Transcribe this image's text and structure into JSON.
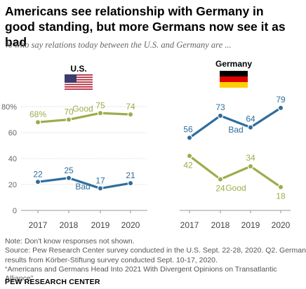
{
  "title": "Americans see relationship with Germany in good standing, but more Germans now see it as bad",
  "subtitle": "% who say relations today between the U.S. and Germany are ...",
  "colors": {
    "good": "#9fab4c",
    "bad": "#2f6d9c",
    "axis": "#999999",
    "grid": "#d9d9d9"
  },
  "icons": {
    "us_flag": "us-flag-icon",
    "germany_flag": "germany-flag-icon"
  },
  "chart_data": [
    {
      "type": "line",
      "panel_title": "U.S.",
      "x": [
        "2017",
        "2018",
        "2019",
        "2020"
      ],
      "ylim": [
        0,
        80
      ],
      "y_ticks": [
        "0",
        "20",
        "40",
        "60",
        "80%"
      ],
      "grid": true,
      "series": [
        {
          "name": "Good",
          "values": [
            68,
            70,
            75,
            74
          ],
          "labels": [
            "68%",
            "70",
            "75",
            "74"
          ]
        },
        {
          "name": "Bad",
          "values": [
            22,
            25,
            17,
            21
          ],
          "labels": [
            "22",
            "25",
            "17",
            "21"
          ]
        }
      ]
    },
    {
      "type": "line",
      "panel_title": "Germany",
      "x": [
        "2017",
        "2018",
        "2019",
        "2020"
      ],
      "ylim": [
        0,
        80
      ],
      "grid": false,
      "series": [
        {
          "name": "Bad",
          "values": [
            56,
            73,
            64,
            79
          ],
          "labels": [
            "56",
            "73",
            "64",
            "79"
          ]
        },
        {
          "name": "Good",
          "values": [
            42,
            24,
            34,
            18
          ],
          "labels": [
            "42",
            "24",
            "34",
            "18"
          ]
        }
      ]
    }
  ],
  "footer": {
    "note": "Note: Don't know responses not shown.",
    "source_1": "Source: Pew Research Center survey conducted in the U.S. Sept. 22-28, 2020. Q2. German",
    "source_2": "results from Körber-Stiftung survey conducted Sept. 10-17, 2020.",
    "report_1": "“Americans and Germans Head Into 2021 With Divergent Opinions on Transatlantic",
    "report_2": "Alliance”",
    "brand": "PEW RESEARCH CENTER"
  }
}
